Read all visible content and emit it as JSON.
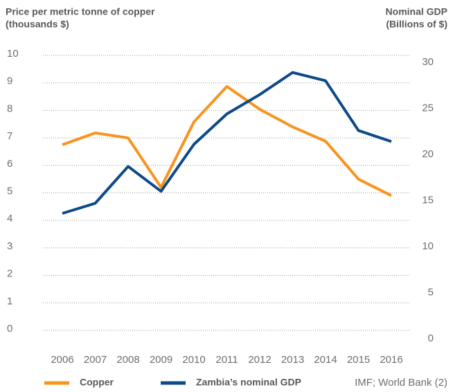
{
  "chart_data": {
    "type": "line",
    "ylabel": [
      "Price per metric tonne of copper",
      "(thousands $)"
    ],
    "y2label": [
      "Nominal GDP",
      "(Billions of $)"
    ],
    "categories": [
      "2006",
      "2007",
      "2008",
      "2009",
      "2010",
      "2011",
      "2012",
      "2013",
      "2014",
      "2015",
      "2016"
    ],
    "series": [
      {
        "name": "Copper",
        "color": "#f7941d",
        "values": [
          6.75,
          7.18,
          7.0,
          5.2,
          7.58,
          8.87,
          8.04,
          7.4,
          6.88,
          5.5,
          4.9
        ]
      },
      {
        "name": "Zambia’s nominal GDP",
        "color": "#0d4a8a",
        "axis": "y2",
        "values": [
          13.6,
          14.7,
          18.7,
          16.0,
          21.1,
          24.4,
          26.5,
          28.9,
          28.0,
          22.6,
          21.4
        ]
      }
    ],
    "ylim": [
      0,
      10
    ],
    "yticks": [
      0,
      1,
      2,
      3,
      4,
      5,
      6,
      7,
      8,
      9,
      10
    ],
    "y2lim": [
      0,
      30
    ],
    "y2ticks": [
      0,
      5,
      10,
      15,
      20,
      25,
      30
    ],
    "grid": true,
    "source": "IMF; World Bank (2)"
  }
}
